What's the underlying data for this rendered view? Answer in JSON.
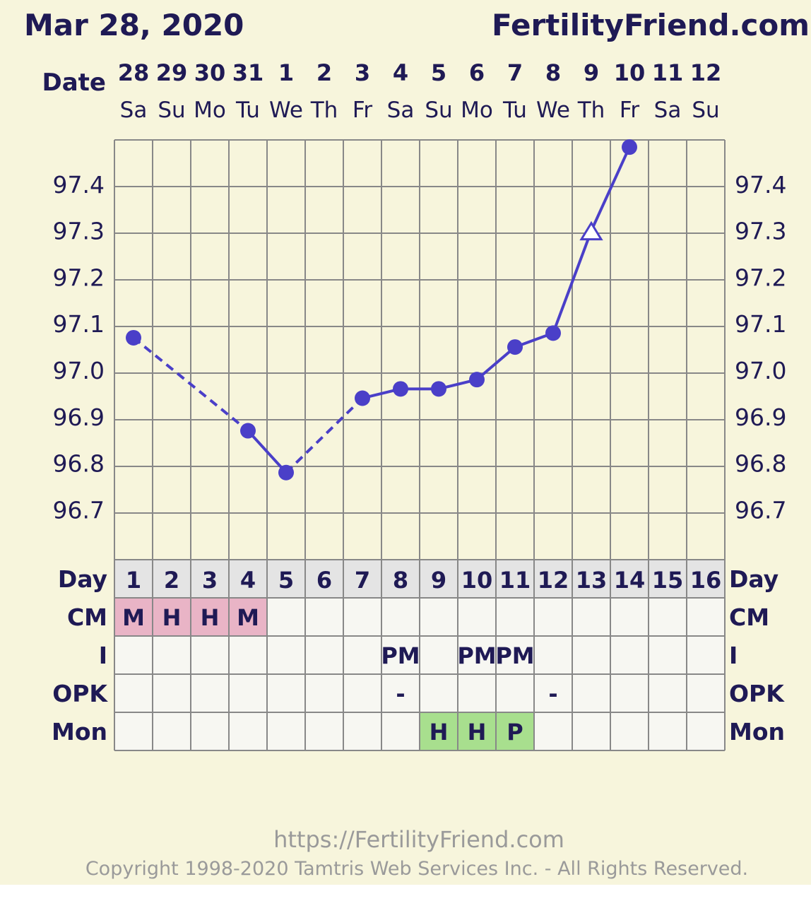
{
  "header": {
    "chart_date": "Mar 28, 2020",
    "site_name": "FertilityFriend.com"
  },
  "labels": {
    "date": "Date",
    "day": "Day",
    "cm": "CM",
    "intercourse": "I",
    "opk": "OPK",
    "monitor": "Mon"
  },
  "footer": {
    "url": "https://FertilityFriend.com",
    "copyright": "Copyright 1998-2020 Tamtris Web Services Inc. - All Rights Reserved."
  },
  "colors": {
    "background": "#f7f5dc",
    "line": "#4a3fc8",
    "grid": "#888888",
    "text": "#1f1a55",
    "cm_cell": "#e9b4c6",
    "mon_cell": "#a8df8e",
    "row_cell": "#f7f7f2",
    "day_cell": "#e4e4e4"
  },
  "chart_data": {
    "type": "line",
    "dates": [
      "28",
      "29",
      "30",
      "31",
      "1",
      "2",
      "3",
      "4",
      "5",
      "6",
      "7",
      "8",
      "9",
      "10",
      "11",
      "12"
    ],
    "weekdays": [
      "Sa",
      "Su",
      "Mo",
      "Tu",
      "We",
      "Th",
      "Fr",
      "Sa",
      "Su",
      "Mo",
      "Tu",
      "We",
      "Th",
      "Fr",
      "Sa",
      "Su"
    ],
    "cycle_days": [
      "1",
      "2",
      "3",
      "4",
      "5",
      "6",
      "7",
      "8",
      "9",
      "10",
      "11",
      "12",
      "13",
      "14",
      "15",
      "16"
    ],
    "y_ticks": [
      "97.4",
      "97.3",
      "97.2",
      "97.1",
      "97.0",
      "96.9",
      "96.8",
      "96.7"
    ],
    "ylim": [
      96.63,
      97.5
    ],
    "series": [
      {
        "values": [
          97.07,
          null,
          null,
          96.87,
          96.78,
          null,
          96.94,
          96.96,
          96.96,
          96.98,
          97.05,
          97.08,
          97.3,
          97.48,
          null,
          null
        ],
        "markers": [
          "dot",
          null,
          null,
          "dot",
          "dot",
          null,
          "dot",
          "dot",
          "dot",
          "dot",
          "dot",
          "dot",
          "open-triangle",
          "dot",
          null,
          null
        ]
      }
    ],
    "rows": {
      "cm": [
        "M",
        "H",
        "H",
        "M",
        "",
        "",
        "",
        "",
        "",
        "",
        "",
        "",
        "",
        "",
        "",
        ""
      ],
      "intercourse": [
        "",
        "",
        "",
        "",
        "",
        "",
        "",
        "PM",
        "",
        "PM",
        "PM",
        "",
        "",
        "",
        "",
        ""
      ],
      "opk": [
        "",
        "",
        "",
        "",
        "",
        "",
        "",
        "-",
        "",
        "",
        "",
        "-",
        "",
        "",
        "",
        ""
      ],
      "monitor": [
        "",
        "",
        "",
        "",
        "",
        "",
        "",
        "",
        "H",
        "H",
        "P",
        "",
        "",
        "",
        "",
        ""
      ]
    }
  }
}
